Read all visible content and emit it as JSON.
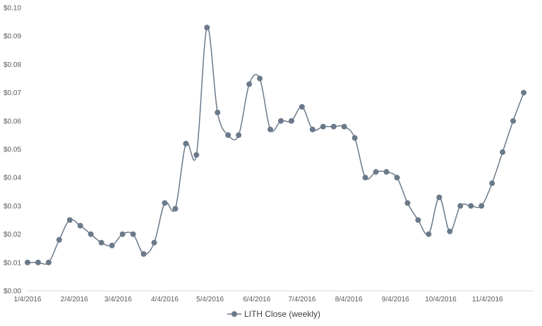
{
  "chart_data": {
    "type": "line",
    "title": "",
    "xlabel": "",
    "ylabel": "",
    "ylim": [
      0,
      0.1
    ],
    "y_ticks": [
      "$0.00",
      "$0.01",
      "$0.02",
      "$0.03",
      "$0.04",
      "$0.05",
      "$0.06",
      "$0.07",
      "$0.08",
      "$0.09",
      "$0.10"
    ],
    "y_tick_values": [
      0,
      0.01,
      0.02,
      0.03,
      0.04,
      0.05,
      0.06,
      0.07,
      0.08,
      0.09,
      0.1
    ],
    "x_ticks": [
      "1/4/2016",
      "2/4/2016",
      "3/4/2016",
      "4/4/2016",
      "5/4/2016",
      "6/4/2016",
      "7/4/2016",
      "8/4/2016",
      "9/4/2016",
      "10/4/2016",
      "11/4/2016"
    ],
    "grid": false,
    "legend_position": "bottom",
    "series": [
      {
        "name": "LITH Close (weekly)",
        "color": "#6b7a8a",
        "x": [
          "2016-01-04",
          "2016-01-11",
          "2016-01-18",
          "2016-01-25",
          "2016-02-01",
          "2016-02-08",
          "2016-02-15",
          "2016-02-22",
          "2016-02-29",
          "2016-03-07",
          "2016-03-14",
          "2016-03-21",
          "2016-03-28",
          "2016-04-04",
          "2016-04-11",
          "2016-04-18",
          "2016-04-25",
          "2016-05-02",
          "2016-05-09",
          "2016-05-16",
          "2016-05-23",
          "2016-05-30",
          "2016-06-06",
          "2016-06-13",
          "2016-06-20",
          "2016-06-27",
          "2016-07-04",
          "2016-07-11",
          "2016-07-18",
          "2016-07-25",
          "2016-08-01",
          "2016-08-08",
          "2016-08-15",
          "2016-08-22",
          "2016-08-29",
          "2016-09-05",
          "2016-09-12",
          "2016-09-19",
          "2016-09-26",
          "2016-10-03",
          "2016-10-10",
          "2016-10-17",
          "2016-10-24",
          "2016-10-31",
          "2016-11-07",
          "2016-11-14",
          "2016-11-21",
          "2016-11-28"
        ],
        "values": [
          0.01,
          0.01,
          0.01,
          0.018,
          0.025,
          0.023,
          0.02,
          0.017,
          0.016,
          0.02,
          0.02,
          0.013,
          0.017,
          0.031,
          0.029,
          0.052,
          0.048,
          0.093,
          0.063,
          0.055,
          0.055,
          0.073,
          0.075,
          0.057,
          0.06,
          0.06,
          0.065,
          0.057,
          0.058,
          0.058,
          0.058,
          0.054,
          0.04,
          0.042,
          0.042,
          0.04,
          0.031,
          0.025,
          0.02,
          0.033,
          0.021,
          0.03,
          0.03,
          0.03,
          0.038,
          0.049,
          0.06,
          0.07
        ]
      }
    ]
  }
}
